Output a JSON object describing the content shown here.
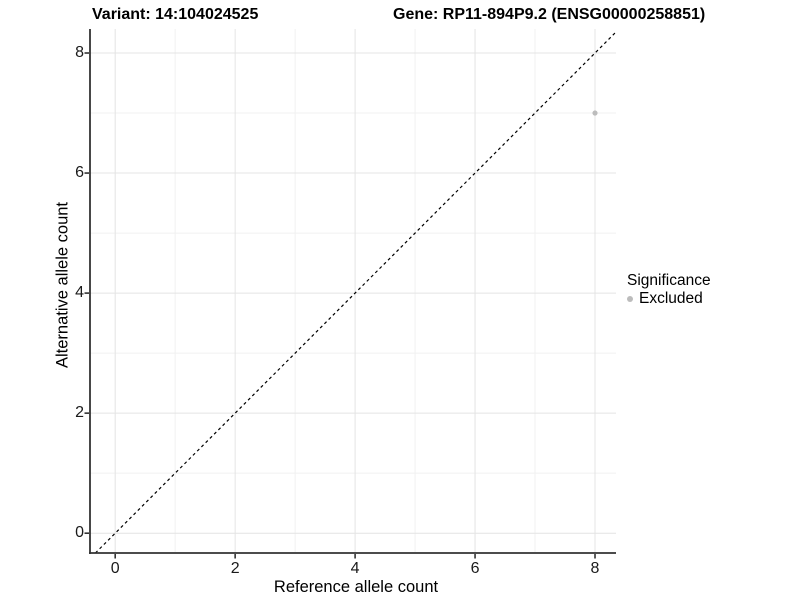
{
  "titles": {
    "variant": "Variant: 14:104024525",
    "gene": "Gene: RP11-894P9.2 (ENSG00000258851)"
  },
  "chart_data": {
    "type": "scatter",
    "title_left": "Variant: 14:104024525",
    "title_right": "Gene: RP11-894P9.2 (ENSG00000258851)",
    "xlabel": "Reference allele count",
    "ylabel": "Alternative allele count",
    "xlim": [
      -0.42,
      8.35
    ],
    "ylim": [
      -0.33,
      8.4
    ],
    "x_major_ticks": [
      0,
      2,
      4,
      6,
      8
    ],
    "x_minor_ticks": [
      1,
      3,
      5,
      7
    ],
    "y_major_ticks": [
      0,
      2,
      4,
      6,
      8
    ],
    "y_minor_ticks": [
      1,
      3,
      5,
      7
    ],
    "grid": "major+minor",
    "identity_line": {
      "slope": 1,
      "intercept": 0,
      "style": "dashed",
      "color": "#000000"
    },
    "series": [
      {
        "name": "Excluded",
        "color": "#bcbcbc",
        "points": [
          {
            "x": 8,
            "y": 7
          }
        ]
      }
    ],
    "legend": {
      "title": "Significance",
      "position": "right",
      "items": [
        {
          "label": "Excluded",
          "color": "#bcbcbc",
          "marker": "circle"
        }
      ]
    }
  },
  "colors": {
    "background": "#ffffff",
    "axis_line": "#333333",
    "tick_text": "#1a1a1a",
    "grid_major": "#e4e4e4",
    "grid_minor": "#f1f1f1",
    "point": "#bcbcbc",
    "identity_line": "#000000"
  }
}
